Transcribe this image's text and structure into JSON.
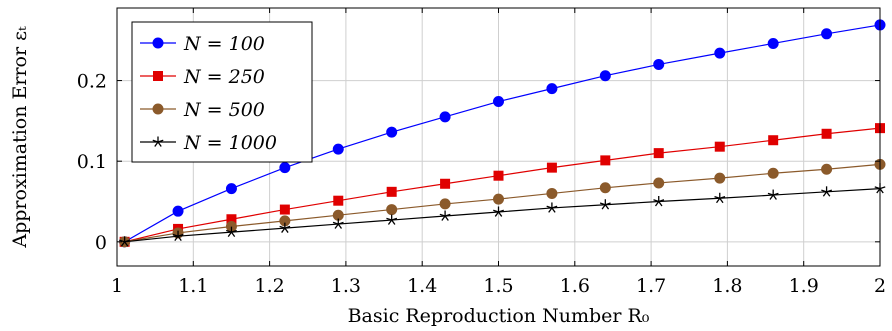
{
  "chart_data": {
    "type": "line",
    "title": "",
    "xlabel": "Basic Reproduction Number R₀",
    "ylabel": "Approximation Error εₜ",
    "xlim": [
      1.0,
      2.0
    ],
    "ylim": [
      -0.03,
      0.29
    ],
    "xticks": [
      1,
      1.1,
      1.2,
      1.3,
      1.4,
      1.5,
      1.6,
      1.7,
      1.8,
      1.9,
      2
    ],
    "xtick_labels": [
      "1",
      "1.1",
      "1.2",
      "1.3",
      "1.4",
      "1.5",
      "1.6",
      "1.7",
      "1.8",
      "1.9",
      "2"
    ],
    "yticks": [
      0,
      0.1,
      0.2
    ],
    "ytick_labels": [
      "0",
      "0.1",
      "0.2"
    ],
    "grid": true,
    "legend_position": "top-left",
    "x": [
      1.01,
      1.08,
      1.15,
      1.22,
      1.29,
      1.36,
      1.43,
      1.5,
      1.57,
      1.64,
      1.71,
      1.79,
      1.86,
      1.93,
      2.0
    ],
    "series": [
      {
        "name": "N = 100",
        "color": "#0000ff",
        "marker": "circle",
        "values": [
          0.0,
          0.038,
          0.066,
          0.092,
          0.115,
          0.136,
          0.155,
          0.174,
          0.19,
          0.206,
          0.22,
          0.234,
          0.246,
          0.258,
          0.269
        ]
      },
      {
        "name": "N = 250",
        "color": "#e00000",
        "marker": "square",
        "values": [
          0.0,
          0.016,
          0.028,
          0.04,
          0.051,
          0.062,
          0.072,
          0.082,
          0.092,
          0.101,
          0.11,
          0.118,
          0.126,
          0.134,
          0.141
        ]
      },
      {
        "name": "N = 500",
        "color": "#8b5a2b",
        "marker": "circle",
        "values": [
          0.0,
          0.011,
          0.019,
          0.026,
          0.033,
          0.04,
          0.047,
          0.053,
          0.06,
          0.067,
          0.073,
          0.079,
          0.085,
          0.09,
          0.096
        ]
      },
      {
        "name": "N = 1000",
        "color": "#000000",
        "marker": "star",
        "values": [
          0.0,
          0.007,
          0.012,
          0.017,
          0.022,
          0.027,
          0.032,
          0.037,
          0.042,
          0.046,
          0.05,
          0.054,
          0.058,
          0.062,
          0.066
        ]
      }
    ]
  }
}
